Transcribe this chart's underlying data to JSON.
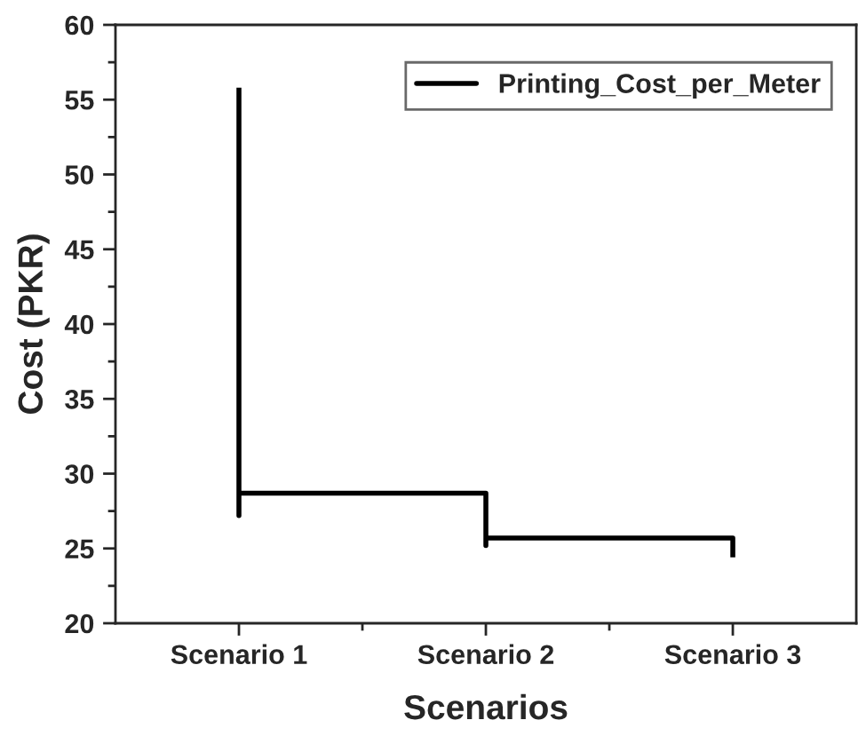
{
  "chart_data": {
    "type": "line",
    "xlabel": "Scenarios",
    "ylabel": "Cost (PKR)",
    "categories": [
      "Scenario 1",
      "Scenario 2",
      "Scenario 3"
    ],
    "series": [
      {
        "name": "Printing_Cost_per_Meter",
        "color": "#000000",
        "x": [
          "Scenario 1",
          "Scenario 1",
          "Scenario 1",
          "Scenario 2",
          "Scenario 2",
          "Scenario 2",
          "Scenario 3",
          "Scenario 3"
        ],
        "values": [
          55.8,
          27.2,
          28.7,
          28.7,
          25.2,
          25.7,
          25.7,
          24.4
        ]
      }
    ],
    "ylim": [
      20,
      60
    ],
    "yticks": [
      20,
      25,
      30,
      35,
      40,
      45,
      50,
      55,
      60
    ],
    "grid": false,
    "legend": "top right",
    "marker": "none",
    "line_style": "solid"
  }
}
